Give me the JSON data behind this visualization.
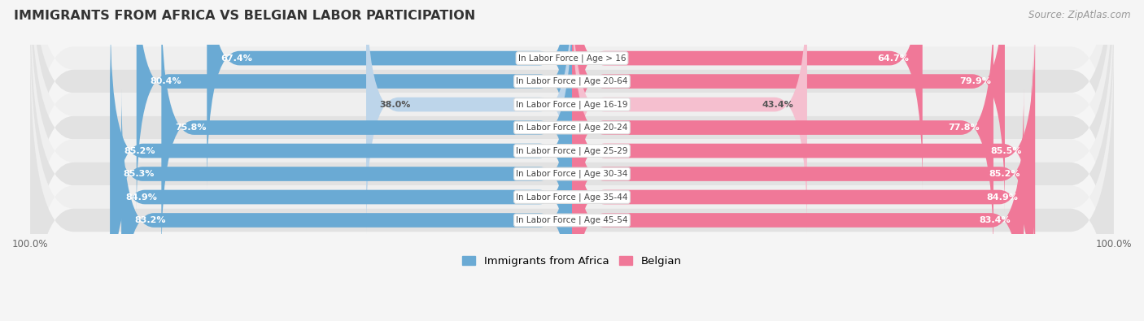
{
  "title": "IMMIGRANTS FROM AFRICA VS BELGIAN LABOR PARTICIPATION",
  "source": "Source: ZipAtlas.com",
  "categories": [
    "In Labor Force | Age > 16",
    "In Labor Force | Age 20-64",
    "In Labor Force | Age 16-19",
    "In Labor Force | Age 20-24",
    "In Labor Force | Age 25-29",
    "In Labor Force | Age 30-34",
    "In Labor Force | Age 35-44",
    "In Labor Force | Age 45-54"
  ],
  "africa_values": [
    67.4,
    80.4,
    38.0,
    75.8,
    85.2,
    85.3,
    84.9,
    83.2
  ],
  "belgian_values": [
    64.7,
    79.9,
    43.4,
    77.8,
    85.5,
    85.2,
    84.9,
    83.4
  ],
  "africa_color_strong": "#6aaad4",
  "africa_color_light": "#bdd5ea",
  "belgian_color_strong": "#f07898",
  "belgian_color_light": "#f5bfcf",
  "row_bg_light": "#efefef",
  "row_bg_dark": "#e2e2e2",
  "label_color_white": "#ffffff",
  "label_color_dark": "#555555",
  "legend_africa": "Immigrants from Africa",
  "legend_belgian": "Belgian",
  "max_val": 100.0,
  "threshold_white_label": 50.0,
  "fig_bg": "#f5f5f5",
  "title_color": "#333333",
  "source_color": "#999999"
}
